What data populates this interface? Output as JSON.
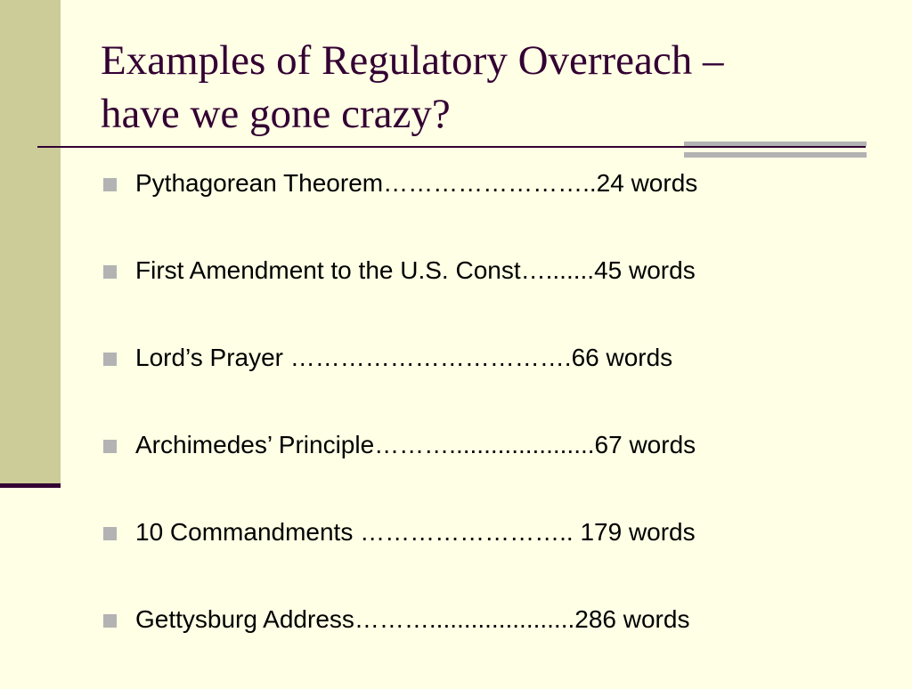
{
  "slide": {
    "title_line1": "Examples of Regulatory Overreach –",
    "title_line2": "have we gone crazy?",
    "bullets": [
      "Pythagorean Theorem……………………..24 words",
      "First Amendment to the U.S. Const….......45 words",
      "Lord’s Prayer …………………………….66 words",
      "Archimedes’ Principle……….....................67 words",
      "10 Commandments …………………….. 179 words",
      "Gettysburg Address……….....................286 words"
    ]
  },
  "colors": {
    "background": "#FFFFE5",
    "sidebar": "#CCCC99",
    "title": "#330033",
    "accent_gray": "#B3B3B3"
  }
}
